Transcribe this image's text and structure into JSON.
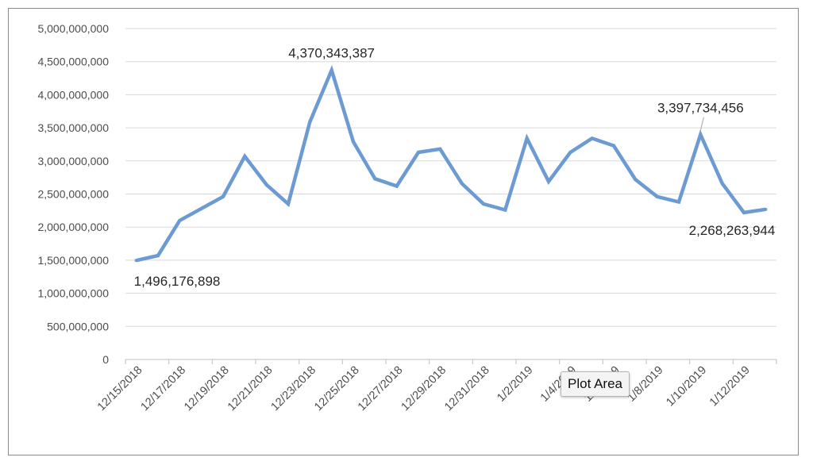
{
  "chart_data": {
    "type": "line",
    "title": "",
    "xlabel": "",
    "ylabel": "",
    "ylim": [
      0,
      5000000000
    ],
    "y_ticks": [
      0,
      500000000,
      1000000000,
      1500000000,
      2000000000,
      2500000000,
      3000000000,
      3500000000,
      4000000000,
      4500000000,
      5000000000
    ],
    "y_tick_labels": [
      "0",
      "500,000,000",
      "1,000,000,000",
      "1,500,000,000",
      "2,000,000,000",
      "2,500,000,000",
      "3,000,000,000",
      "3,500,000,000",
      "4,000,000,000",
      "4,500,000,000",
      "5,000,000,000"
    ],
    "x_tick_labels": [
      "12/15/2018",
      "12/17/2018",
      "12/19/2018",
      "12/21/2018",
      "12/23/2018",
      "12/25/2018",
      "12/27/2018",
      "12/29/2018",
      "12/31/2018",
      "1/2/2019",
      "1/4/2019",
      "1/6/2019",
      "1/8/2019",
      "1/10/2019",
      "1/12/2019"
    ],
    "grid": true,
    "legend": "none",
    "line_color": "#6b9bd2",
    "series": [
      {
        "x": [
          "12/15/2018",
          "12/16/2018",
          "12/17/2018",
          "12/18/2018",
          "12/19/2018",
          "12/20/2018",
          "12/21/2018",
          "12/22/2018",
          "12/23/2018",
          "12/24/2018",
          "12/25/2018",
          "12/26/2018",
          "12/27/2018",
          "12/28/2018",
          "12/29/2018",
          "12/30/2018",
          "12/31/2018",
          "1/1/2019",
          "1/2/2019",
          "1/3/2019",
          "1/4/2019",
          "1/5/2019",
          "1/6/2019",
          "1/7/2019",
          "1/8/2019",
          "1/9/2019",
          "1/10/2019",
          "1/11/2019",
          "1/12/2019",
          "1/13/2019"
        ],
        "values": [
          1496176898,
          1570000000,
          2100000000,
          2280000000,
          2460000000,
          3070000000,
          2640000000,
          2350000000,
          3590000000,
          4370343387,
          3290000000,
          2730000000,
          2620000000,
          3130000000,
          3180000000,
          2660000000,
          2350000000,
          2260000000,
          3340000000,
          2690000000,
          3130000000,
          3340000000,
          3230000000,
          2720000000,
          2460000000,
          2380000000,
          3397734456,
          2660000000,
          2220000000,
          2268263944
        ]
      }
    ],
    "data_labels": [
      {
        "index": 0,
        "text": "1,496,176,898"
      },
      {
        "index": 9,
        "text": "4,370,343,387"
      },
      {
        "index": 26,
        "text": "3,397,734,456"
      },
      {
        "index": 29,
        "text": "2,268,263,944"
      }
    ]
  },
  "tooltip": {
    "text": "Plot Area"
  }
}
